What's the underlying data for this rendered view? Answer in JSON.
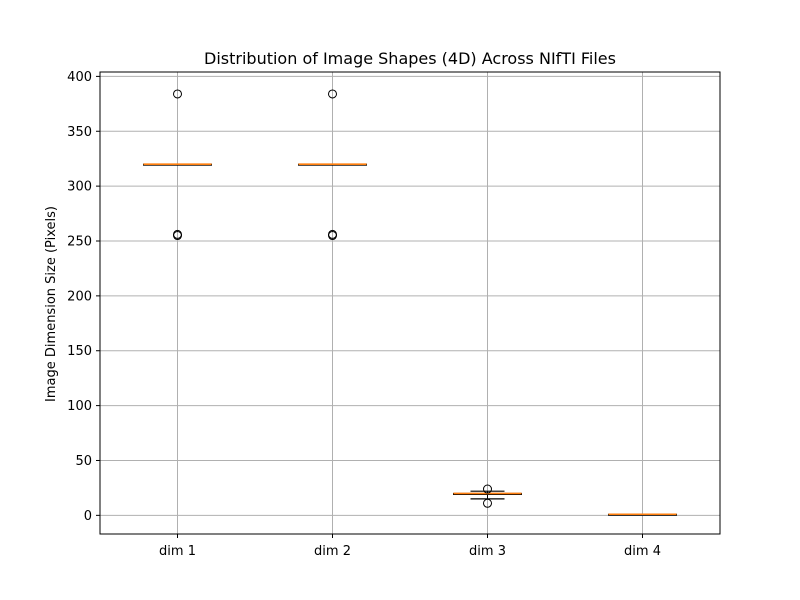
{
  "chart_data": {
    "type": "box",
    "title": "Distribution of Image Shapes (4D) Across NIfTI Files",
    "xlabel": "",
    "ylabel": "Image Dimension Size (Pixels)",
    "categories": [
      "dim 1",
      "dim 2",
      "dim 3",
      "dim 4"
    ],
    "ylim": [
      -17,
      404
    ],
    "yticks": [
      0,
      50,
      100,
      150,
      200,
      250,
      300,
      350,
      400
    ],
    "grid": true,
    "legend": "none",
    "boxes": [
      {
        "category": "dim 1",
        "q1": 320,
        "median": 320,
        "q3": 320,
        "whisker_low": 320,
        "whisker_high": 320,
        "outliers": [
          384,
          256,
          255
        ]
      },
      {
        "category": "dim 2",
        "q1": 320,
        "median": 320,
        "q3": 320,
        "whisker_low": 320,
        "whisker_high": 320,
        "outliers": [
          384,
          256,
          255
        ]
      },
      {
        "category": "dim 3",
        "q1": 19,
        "median": 20,
        "q3": 20,
        "whisker_low": 15,
        "whisker_high": 22,
        "outliers": [
          24,
          11
        ]
      },
      {
        "category": "dim 4",
        "q1": 1,
        "median": 1,
        "q3": 1,
        "whisker_low": 1,
        "whisker_high": 1,
        "outliers": []
      }
    ],
    "colors": {
      "box": "#000000",
      "median": "#ff7f0e",
      "grid": "#b0b0b0",
      "outlier": "#000000"
    }
  }
}
